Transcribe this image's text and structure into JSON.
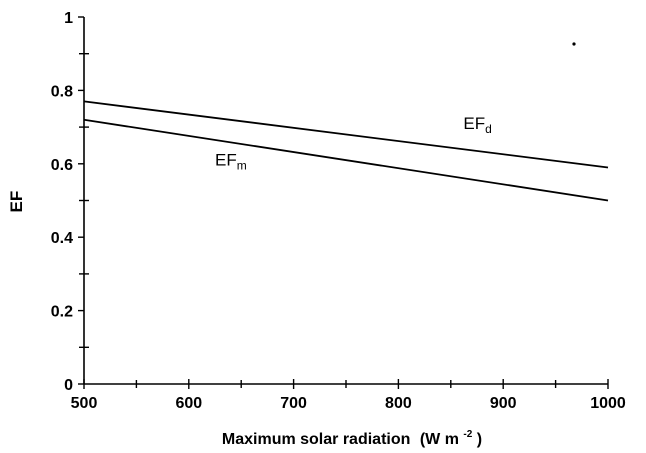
{
  "chart_data": {
    "type": "line",
    "title": "",
    "xlabel": "Maximum solar radiation",
    "xlabel_unit": "(W m",
    "xlabel_unit_exp": "-2",
    "xlabel_unit_close": ")",
    "ylabel": "EF",
    "xlim": [
      500,
      1000
    ],
    "ylim": [
      0,
      1
    ],
    "x_ticks": [
      500,
      600,
      700,
      800,
      900,
      1000
    ],
    "y_ticks": [
      0,
      0.2,
      0.4,
      0.6,
      0.8,
      1
    ],
    "x_tick_labels": [
      "500",
      "600",
      "700",
      "800",
      "900",
      "1000"
    ],
    "y_tick_labels": [
      "0",
      "0.2",
      "0.4",
      "0.6",
      "0.8",
      "1"
    ],
    "grid": false,
    "series": [
      {
        "name": "EF_d",
        "label_main": "EF",
        "label_sub": "d",
        "x": [
          500,
          1000
        ],
        "y": [
          0.77,
          0.59
        ]
      },
      {
        "name": "EF_m",
        "label_main": "EF",
        "label_sub": "m",
        "x": [
          500,
          1000
        ],
        "y": [
          0.72,
          0.5
        ]
      }
    ]
  }
}
